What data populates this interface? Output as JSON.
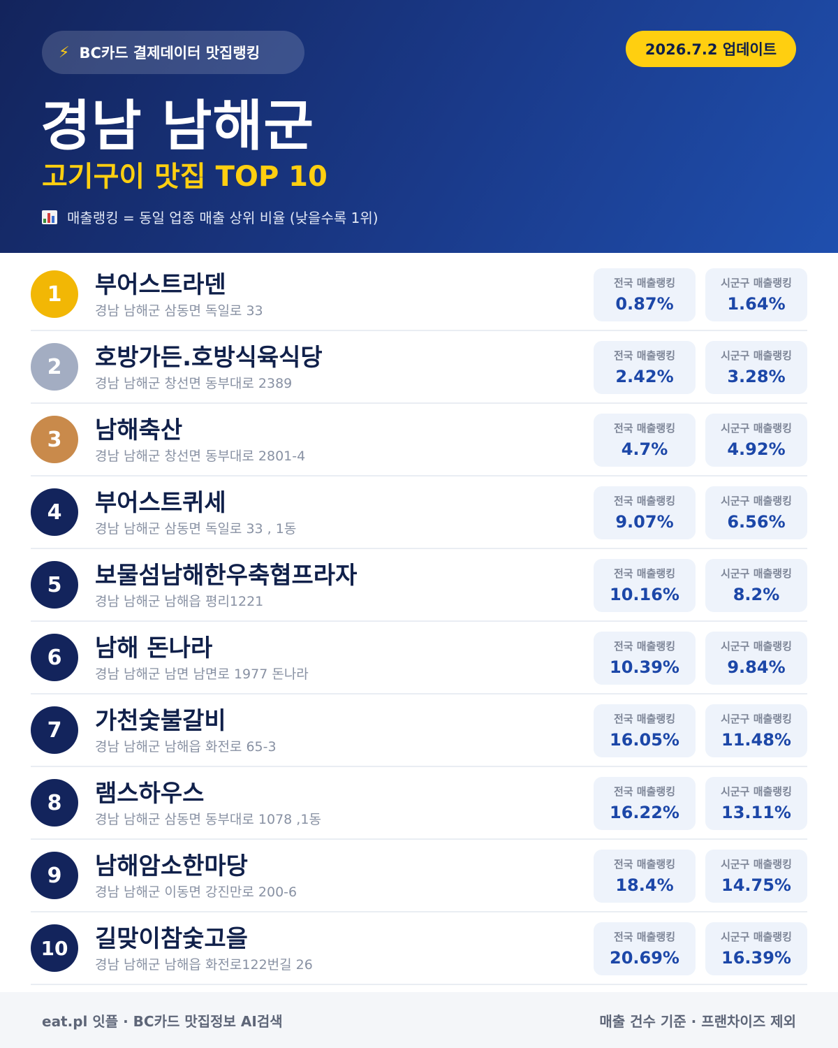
{
  "header": {
    "source_label": "BC카드 결제데이터 맛집랭킹",
    "source_icon": "lightning-icon",
    "update_label": "2026.7.2 업데이트",
    "title": "경남 남해군",
    "subtitle": "고기구이 맛집 TOP 10",
    "note": "매출랭킹 = 동일 업종 매출 상위 비율 (낮을수록 1위)",
    "note_icon": "bar-chart-icon"
  },
  "list": {
    "national_label": "전국 매출랭킹",
    "local_label": "시군구 매출랭킹",
    "items": [
      {
        "rank": "1",
        "name": "부어스트라덴",
        "address": "경남 남해군 삼동면 독일로 33",
        "national": "0.87%",
        "local": "1.64%"
      },
      {
        "rank": "2",
        "name": "호방가든.호방식육식당",
        "address": "경남 남해군 창선면 동부대로 2389",
        "national": "2.42%",
        "local": "3.28%"
      },
      {
        "rank": "3",
        "name": "남해축산",
        "address": "경남 남해군 창선면 동부대로 2801-4",
        "national": "4.7%",
        "local": "4.92%"
      },
      {
        "rank": "4",
        "name": "부어스트퀴세",
        "address": "경남 남해군 삼동면 독일로 33 , 1동",
        "national": "9.07%",
        "local": "6.56%"
      },
      {
        "rank": "5",
        "name": "보물섬남해한우축협프라자",
        "address": "경남 남해군 남해읍 평리1221",
        "national": "10.16%",
        "local": "8.2%"
      },
      {
        "rank": "6",
        "name": "남해 돈나라",
        "address": "경남 남해군 남면 남면로 1977 돈나라",
        "national": "10.39%",
        "local": "9.84%"
      },
      {
        "rank": "7",
        "name": "가천숯불갈비",
        "address": "경남 남해군 남해읍 화전로 65-3",
        "national": "16.05%",
        "local": "11.48%"
      },
      {
        "rank": "8",
        "name": "램스하우스",
        "address": "경남 남해군 삼동면 동부대로 1078 ,1동",
        "national": "16.22%",
        "local": "13.11%"
      },
      {
        "rank": "9",
        "name": "남해암소한마당",
        "address": "경남 남해군 이동면 강진만로 200-6",
        "national": "18.4%",
        "local": "14.75%"
      },
      {
        "rank": "10",
        "name": "길맞이참숯고을",
        "address": "경남 남해군 남해읍 화전로122번길 26",
        "national": "20.69%",
        "local": "16.39%"
      }
    ]
  },
  "footer": {
    "left": "eat.pl 잇플 · BC카드 맛집정보 AI검색",
    "right": "매출 건수 기준 · 프랜차이즈 제외"
  },
  "colors": {
    "header_bg": "#1a3a8a",
    "accent_yellow": "#ffcf10",
    "gold": "#f2b705",
    "silver": "#a3adc2",
    "bronze": "#c98a4b",
    "navy": "#13245c",
    "value_blue": "#1c47a8"
  }
}
